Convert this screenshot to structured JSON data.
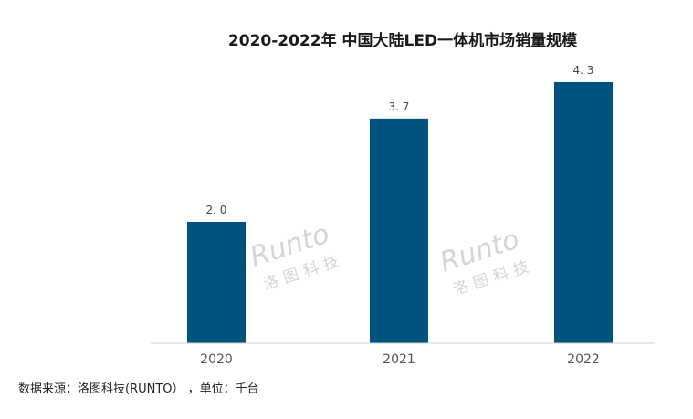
{
  "chart_data": {
    "type": "bar",
    "title": "2020-2022年 中国大陆LED一体机市场销量规模",
    "categories": [
      "2020",
      "2021",
      "2022"
    ],
    "values": [
      2.0,
      3.7,
      4.3
    ],
    "value_labels": [
      "2. 0",
      "3. 7",
      "4. 3"
    ],
    "ylim": [
      0,
      4.6
    ],
    "grid": false,
    "bar_color": "#00527f",
    "source": "数据来源：洛图科技(RUNTO） ，单位：千台"
  },
  "watermark": {
    "brand": "Runto",
    "brand_cn": "洛图科技"
  }
}
